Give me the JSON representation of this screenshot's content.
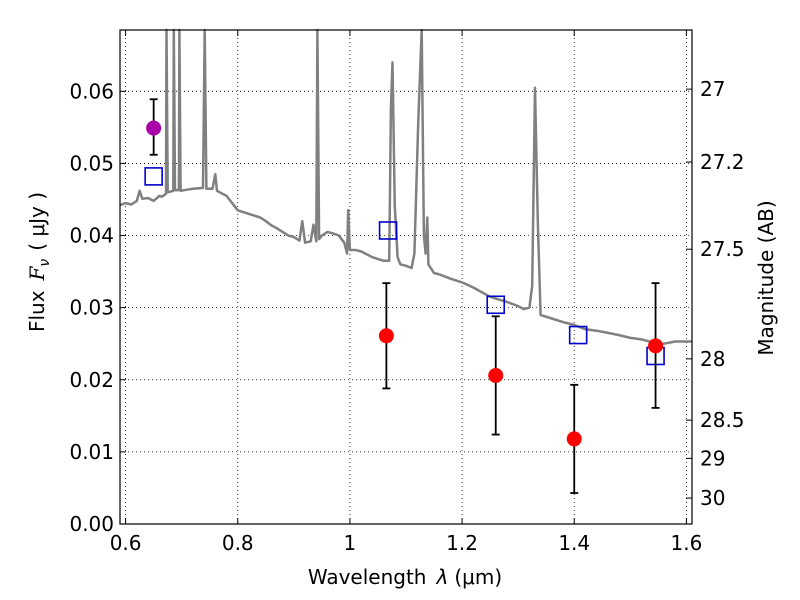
{
  "chart_data": {
    "type": "scatter",
    "xlabel_text": "Wavelength",
    "xlabel_math": "λ",
    "xlabel_unit": "(μm)",
    "ylabel_text": "Flux",
    "ylabel_math": "F",
    "ylabel_sub": "ν",
    "ylabel_unit": "( μJy )",
    "y2label": "Magnitude (AB)",
    "xlim": [
      0.59,
      1.61
    ],
    "ylim": [
      0.0,
      0.0685
    ],
    "grid": true,
    "x_ticks": [
      {
        "value": 0.6,
        "label": "0.6"
      },
      {
        "value": 0.8,
        "label": "0.8"
      },
      {
        "value": 1.0,
        "label": "1"
      },
      {
        "value": 1.2,
        "label": "1.2"
      },
      {
        "value": 1.4,
        "label": "1.4"
      },
      {
        "value": 1.6,
        "label": "1.6"
      }
    ],
    "y_ticks": [
      {
        "value": 0.0,
        "label": "0.00"
      },
      {
        "value": 0.01,
        "label": "0.01"
      },
      {
        "value": 0.02,
        "label": "0.02"
      },
      {
        "value": 0.03,
        "label": "0.03"
      },
      {
        "value": 0.04,
        "label": "0.04"
      },
      {
        "value": 0.05,
        "label": "0.05"
      },
      {
        "value": 0.06,
        "label": "0.06"
      }
    ],
    "y2_ticks": [
      {
        "flux": 0.0603,
        "label": "27"
      },
      {
        "flux": 0.0502,
        "label": "27.2"
      },
      {
        "flux": 0.0381,
        "label": "27.5"
      },
      {
        "flux": 0.0229,
        "label": "28"
      },
      {
        "flux": 0.0144,
        "label": "28.5"
      },
      {
        "flux": 0.0091,
        "label": "29"
      },
      {
        "flux": 0.0036,
        "label": "30"
      }
    ],
    "series": [
      {
        "kind": "spectrum",
        "color": "#808080",
        "points": [
          [
            0.59,
            0.0442
          ],
          [
            0.6,
            0.0445
          ],
          [
            0.61,
            0.0443
          ],
          [
            0.62,
            0.0448
          ],
          [
            0.625,
            0.0462
          ],
          [
            0.63,
            0.0451
          ],
          [
            0.64,
            0.0452
          ],
          [
            0.65,
            0.0448
          ],
          [
            0.66,
            0.0455
          ],
          [
            0.665,
            0.0454
          ],
          [
            0.672,
            0.0458
          ],
          [
            0.673,
            0.0685
          ],
          [
            0.675,
            0.046
          ],
          [
            0.685,
            0.0462
          ],
          [
            0.686,
            0.0685
          ],
          [
            0.688,
            0.0463
          ],
          [
            0.695,
            0.0463
          ],
          [
            0.696,
            0.0685
          ],
          [
            0.698,
            0.0462
          ],
          [
            0.72,
            0.0465
          ],
          [
            0.738,
            0.0466
          ],
          [
            0.741,
            0.0685
          ],
          [
            0.744,
            0.0465
          ],
          [
            0.755,
            0.0465
          ],
          [
            0.76,
            0.0485
          ],
          [
            0.763,
            0.0462
          ],
          [
            0.78,
            0.0455
          ],
          [
            0.8,
            0.0435
          ],
          [
            0.82,
            0.043
          ],
          [
            0.84,
            0.0425
          ],
          [
            0.85,
            0.042
          ],
          [
            0.86,
            0.0414
          ],
          [
            0.87,
            0.041
          ],
          [
            0.88,
            0.0405
          ],
          [
            0.89,
            0.04
          ],
          [
            0.9,
            0.0398
          ],
          [
            0.91,
            0.0393
          ],
          [
            0.915,
            0.042
          ],
          [
            0.92,
            0.039
          ],
          [
            0.93,
            0.0392
          ],
          [
            0.935,
            0.0415
          ],
          [
            0.94,
            0.0392
          ],
          [
            0.942,
            0.0685
          ],
          [
            0.945,
            0.0395
          ],
          [
            0.95,
            0.04
          ],
          [
            0.96,
            0.0405
          ],
          [
            0.97,
            0.0403
          ],
          [
            0.98,
            0.04
          ],
          [
            0.99,
            0.039
          ],
          [
            0.995,
            0.0375
          ],
          [
            0.997,
            0.0435
          ],
          [
            1.0,
            0.038
          ],
          [
            1.01,
            0.038
          ],
          [
            1.02,
            0.0378
          ],
          [
            1.04,
            0.037
          ],
          [
            1.06,
            0.0365
          ],
          [
            1.07,
            0.0365
          ],
          [
            1.073,
            0.0575
          ],
          [
            1.076,
            0.064
          ],
          [
            1.08,
            0.044
          ],
          [
            1.085,
            0.037
          ],
          [
            1.09,
            0.036
          ],
          [
            1.1,
            0.0358
          ],
          [
            1.11,
            0.0355
          ],
          [
            1.115,
            0.0375
          ],
          [
            1.122,
            0.056
          ],
          [
            1.128,
            0.0685
          ],
          [
            1.13,
            0.054
          ],
          [
            1.132,
            0.04
          ],
          [
            1.135,
            0.0375
          ],
          [
            1.138,
            0.0425
          ],
          [
            1.14,
            0.036
          ],
          [
            1.15,
            0.0348
          ],
          [
            1.16,
            0.0346
          ],
          [
            1.18,
            0.034
          ],
          [
            1.2,
            0.0335
          ],
          [
            1.22,
            0.0328
          ],
          [
            1.25,
            0.0315
          ],
          [
            1.28,
            0.0308
          ],
          [
            1.3,
            0.0302
          ],
          [
            1.31,
            0.0298
          ],
          [
            1.32,
            0.03
          ],
          [
            1.325,
            0.033
          ],
          [
            1.33,
            0.0605
          ],
          [
            1.335,
            0.042
          ],
          [
            1.34,
            0.029
          ],
          [
            1.36,
            0.0285
          ],
          [
            1.38,
            0.028
          ],
          [
            1.4,
            0.0276
          ],
          [
            1.42,
            0.027
          ],
          [
            1.44,
            0.0268
          ],
          [
            1.46,
            0.0265
          ],
          [
            1.48,
            0.0262
          ],
          [
            1.5,
            0.0258
          ],
          [
            1.52,
            0.0256
          ],
          [
            1.54,
            0.0252
          ],
          [
            1.56,
            0.025
          ],
          [
            1.58,
            0.0253
          ],
          [
            1.6,
            0.0253
          ],
          [
            1.61,
            0.0253
          ]
        ]
      },
      {
        "kind": "model-photometry",
        "marker": "open-square",
        "color": "#0000cc",
        "points": [
          [
            0.65,
            0.0482
          ],
          [
            1.068,
            0.0407
          ],
          [
            1.26,
            0.0304
          ],
          [
            1.407,
            0.0262
          ],
          [
            1.545,
            0.0233
          ]
        ]
      },
      {
        "kind": "observed-photometry",
        "marker": "filled-circle",
        "color": "#ff0000",
        "points": [
          {
            "x": 1.065,
            "y": 0.0261,
            "err_lo": 0.0188,
            "err_hi": 0.0334
          },
          {
            "x": 1.26,
            "y": 0.0206,
            "err_lo": 0.0124,
            "err_hi": 0.0288
          },
          {
            "x": 1.4,
            "y": 0.0118,
            "err_lo": 0.0043,
            "err_hi": 0.0193
          },
          {
            "x": 1.545,
            "y": 0.0247,
            "err_lo": 0.0161,
            "err_hi": 0.0334
          }
        ]
      },
      {
        "kind": "observed-photometry-optical",
        "marker": "filled-circle",
        "color": "#aa00aa",
        "points": [
          {
            "x": 0.65,
            "y": 0.0549,
            "err_lo": 0.0512,
            "err_hi": 0.0589
          }
        ]
      }
    ]
  }
}
